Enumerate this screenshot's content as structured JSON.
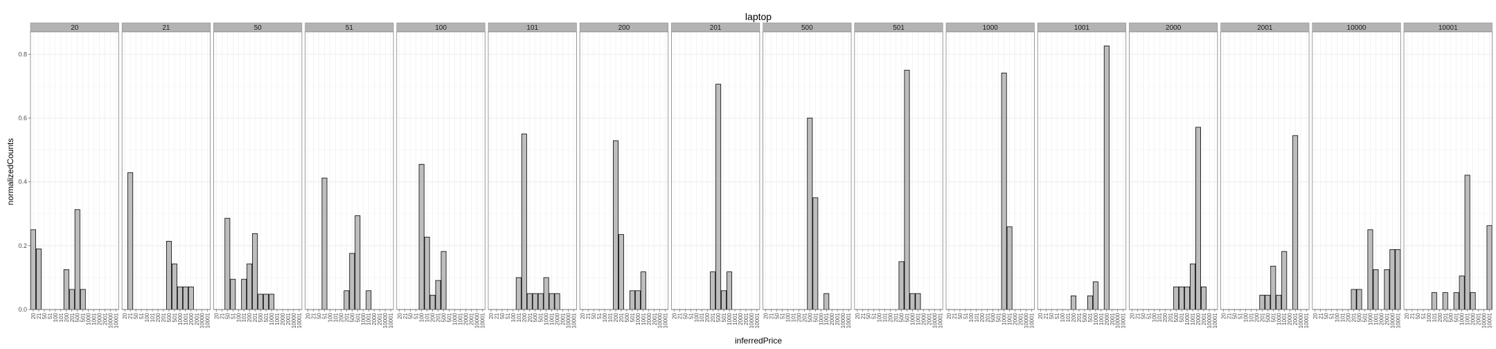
{
  "chart_data": {
    "type": "bar",
    "title": "laptop",
    "xlabel": "inferredPrice",
    "ylabel": "normalizedCounts",
    "ylim": [
      0,
      0.87
    ],
    "yticks": [
      "0.0",
      "0.2",
      "0.4",
      "0.6",
      "0.8"
    ],
    "ytick_values": [
      0,
      0.2,
      0.4,
      0.6,
      0.8
    ],
    "grid": true,
    "categories": [
      "20",
      "21",
      "50",
      "51",
      "100",
      "101",
      "200",
      "201",
      "500",
      "501",
      "1000",
      "1001",
      "2000",
      "2001",
      "10000",
      "10001"
    ],
    "facets": [
      {
        "label": "20",
        "values": [
          0.25,
          0.19,
          0,
          0,
          0,
          0,
          0.125,
          0.063,
          0.313,
          0.063,
          0,
          0,
          0,
          0,
          0,
          0
        ]
      },
      {
        "label": "21",
        "values": [
          0,
          0.429,
          0,
          0,
          0,
          0,
          0,
          0,
          0.214,
          0.143,
          0.071,
          0.071,
          0.071,
          0,
          0,
          0
        ]
      },
      {
        "label": "50",
        "values": [
          0,
          0,
          0.286,
          0.095,
          0,
          0.095,
          0.143,
          0.238,
          0.048,
          0.048,
          0.048,
          0,
          0,
          0,
          0,
          0
        ]
      },
      {
        "label": "51",
        "values": [
          0,
          0,
          0,
          0.412,
          0,
          0,
          0,
          0.059,
          0.176,
          0.294,
          0,
          0.059,
          0,
          0,
          0,
          0
        ]
      },
      {
        "label": "100",
        "values": [
          0,
          0,
          0,
          0,
          0.455,
          0.227,
          0.045,
          0.091,
          0.182,
          0,
          0,
          0,
          0,
          0,
          0,
          0
        ]
      },
      {
        "label": "101",
        "values": [
          0,
          0,
          0,
          0,
          0,
          0.1,
          0.55,
          0.05,
          0.05,
          0.05,
          0.1,
          0.05,
          0.05,
          0,
          0,
          0
        ]
      },
      {
        "label": "200",
        "values": [
          0,
          0,
          0,
          0,
          0,
          0,
          0.529,
          0.235,
          0,
          0.059,
          0.059,
          0.118,
          0,
          0,
          0,
          0
        ]
      },
      {
        "label": "201",
        "values": [
          0,
          0,
          0,
          0,
          0,
          0,
          0,
          0.118,
          0.706,
          0.059,
          0.118,
          0,
          0,
          0,
          0,
          0
        ]
      },
      {
        "label": "500",
        "values": [
          0,
          0,
          0,
          0,
          0,
          0,
          0,
          0,
          0.6,
          0.35,
          0,
          0.05,
          0,
          0,
          0,
          0
        ]
      },
      {
        "label": "501",
        "values": [
          0,
          0,
          0,
          0,
          0,
          0,
          0,
          0,
          0.15,
          0.75,
          0.05,
          0.05,
          0,
          0,
          0,
          0
        ]
      },
      {
        "label": "1000",
        "values": [
          0,
          0,
          0,
          0,
          0,
          0,
          0,
          0,
          0,
          0,
          0.741,
          0.259,
          0,
          0,
          0,
          0
        ]
      },
      {
        "label": "1001",
        "values": [
          0,
          0,
          0,
          0,
          0,
          0,
          0.043,
          0,
          0,
          0.043,
          0.087,
          0,
          0.826,
          0,
          0,
          0
        ]
      },
      {
        "label": "2000",
        "values": [
          0,
          0,
          0,
          0,
          0,
          0,
          0,
          0,
          0.071,
          0.071,
          0.071,
          0.143,
          0.571,
          0.071,
          0,
          0
        ]
      },
      {
        "label": "2001",
        "values": [
          0,
          0,
          0,
          0,
          0,
          0,
          0,
          0.045,
          0.045,
          0.136,
          0.045,
          0.182,
          0,
          0.545,
          0,
          0
        ]
      },
      {
        "label": "10000",
        "values": [
          0,
          0,
          0,
          0,
          0,
          0,
          0,
          0.063,
          0.063,
          0,
          0.25,
          0.125,
          0,
          0.125,
          0.188,
          0.188
        ]
      },
      {
        "label": "10001",
        "values": [
          0,
          0,
          0,
          0,
          0,
          0.053,
          0,
          0.053,
          0,
          0.053,
          0.105,
          0.421,
          0.053,
          0,
          0,
          0.263
        ]
      }
    ],
    "colors": {
      "bar_fill": "#bdbdbd",
      "bar_stroke": "#000000",
      "strip_fill": "#b3b3b3",
      "strip_stroke": "#7f7f7f",
      "panel_border": "#7f7f7f",
      "grid_major": "#ebebeb",
      "grid_minor": "#f5f5f5"
    }
  }
}
